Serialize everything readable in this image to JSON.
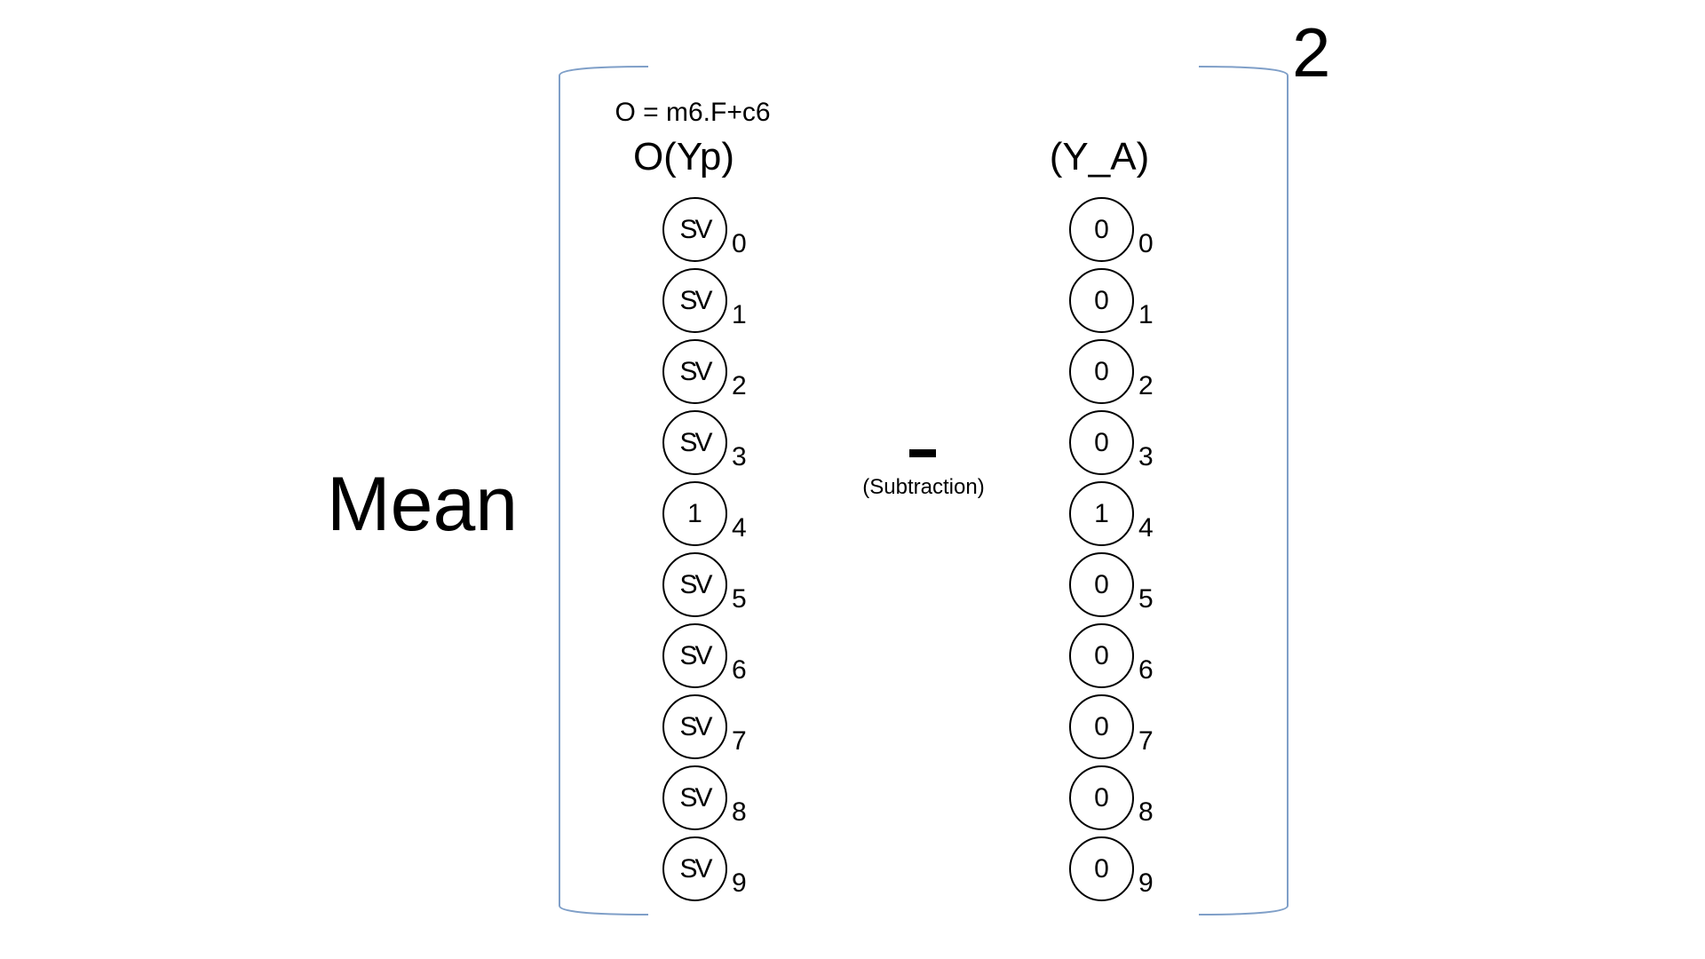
{
  "mean_label": "Mean",
  "exponent": "2",
  "formula": "O = m6.F+c6",
  "left_heading": "O(Yp)",
  "right_heading": "(Y_A)",
  "operator_caption": "(Subtraction)",
  "left_vector": [
    {
      "value": "SV",
      "index": "0"
    },
    {
      "value": "SV",
      "index": "1"
    },
    {
      "value": "SV",
      "index": "2"
    },
    {
      "value": "SV",
      "index": "3"
    },
    {
      "value": "1",
      "index": "4"
    },
    {
      "value": "SV",
      "index": "5"
    },
    {
      "value": "SV",
      "index": "6"
    },
    {
      "value": "SV",
      "index": "7"
    },
    {
      "value": "SV",
      "index": "8"
    },
    {
      "value": "SV",
      "index": "9"
    }
  ],
  "right_vector": [
    {
      "value": "0",
      "index": "0"
    },
    {
      "value": "0",
      "index": "1"
    },
    {
      "value": "0",
      "index": "2"
    },
    {
      "value": "0",
      "index": "3"
    },
    {
      "value": "1",
      "index": "4"
    },
    {
      "value": "0",
      "index": "5"
    },
    {
      "value": "0",
      "index": "6"
    },
    {
      "value": "0",
      "index": "7"
    },
    {
      "value": "0",
      "index": "8"
    },
    {
      "value": "0",
      "index": "9"
    }
  ],
  "colors": {
    "bracket": "#7f9fc8",
    "text": "#000000",
    "background": "#ffffff"
  }
}
